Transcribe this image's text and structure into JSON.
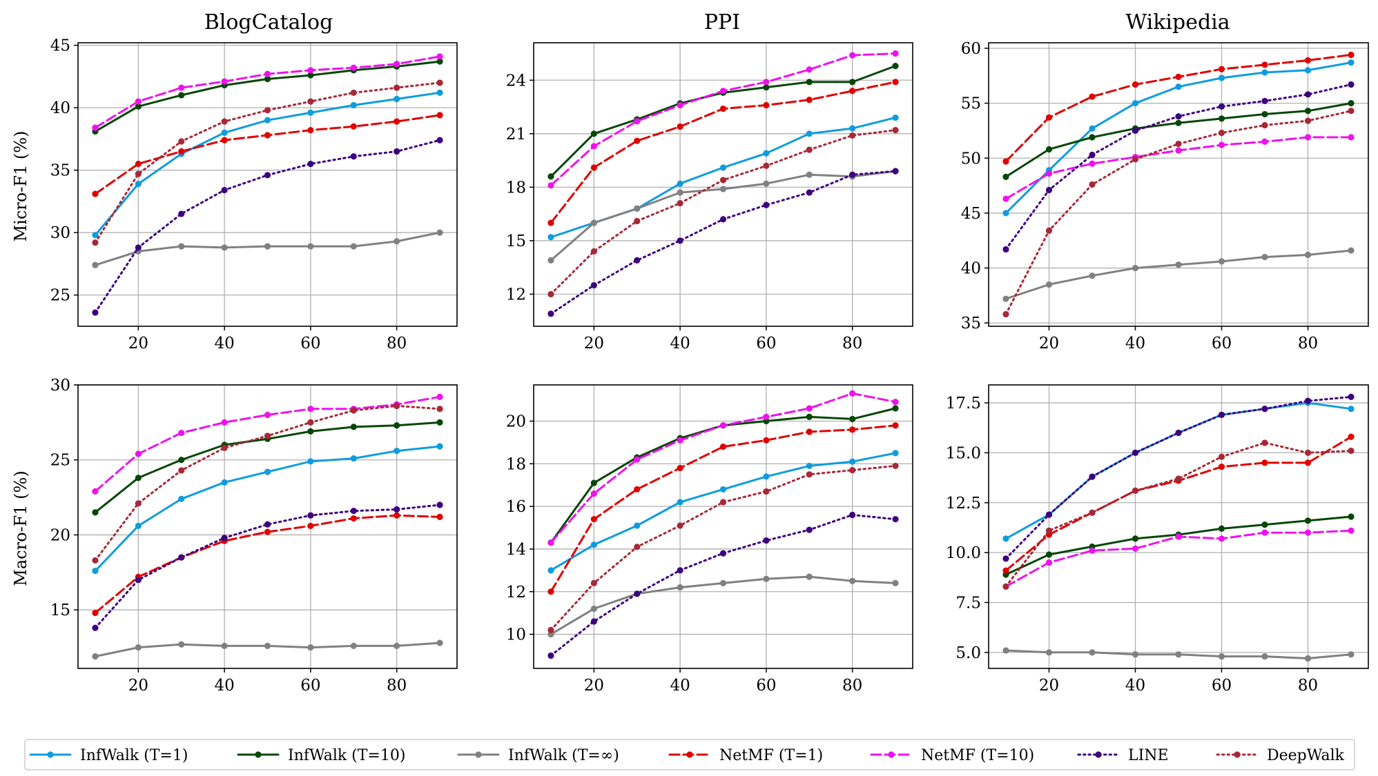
{
  "figure": {
    "row_labels": [
      "Micro-F1 (%)",
      "Macro-F1 (%)"
    ],
    "column_titles": [
      "BlogCatalog",
      "PPI",
      "Wikipedia"
    ]
  },
  "legend": {
    "placement": "bottom-center",
    "entries": [
      {
        "name": "InfWalk (T=1)",
        "color": "#0e9ce0",
        "dash": "solid"
      },
      {
        "name": "InfWalk (T=10)",
        "color": "#054705",
        "dash": "solid"
      },
      {
        "name": "InfWalk (T=∞)",
        "color": "#808080",
        "dash": "solid"
      },
      {
        "name": "NetMF (T=1)",
        "color": "#e00000",
        "dash": "dashed"
      },
      {
        "name": "NetMF (T=10)",
        "color": "#ee11ee",
        "dash": "dashed"
      },
      {
        "name": "LINE",
        "color": "#3d0080",
        "dash": "dotted"
      },
      {
        "name": "DeepWalk",
        "color": "#a82838",
        "dash": "dotted"
      }
    ]
  },
  "chart_data": [
    {
      "type": "line",
      "title": "BlogCatalog",
      "xlabel": "",
      "ylabel": "Micro-F1 (%)",
      "grid": true,
      "xlim": [
        6,
        94
      ],
      "ylim": [
        22.5,
        45.2
      ],
      "xticks": [
        "20",
        "40",
        "60",
        "80"
      ],
      "yticks": [
        "25",
        "30",
        "35",
        "40",
        "45"
      ],
      "x": [
        10,
        20,
        30,
        40,
        50,
        60,
        70,
        80,
        90
      ],
      "series": [
        {
          "name": "InfWalk (T=1)",
          "values": [
            29.8,
            33.9,
            36.3,
            38.0,
            39.0,
            39.6,
            40.2,
            40.7,
            41.2
          ]
        },
        {
          "name": "InfWalk (T=10)",
          "values": [
            38.1,
            40.1,
            41.0,
            41.8,
            42.3,
            42.6,
            43.0,
            43.3,
            43.7
          ]
        },
        {
          "name": "InfWalk (T=∞)",
          "values": [
            27.4,
            28.5,
            28.9,
            28.8,
            28.9,
            28.9,
            28.9,
            29.3,
            30.0
          ]
        },
        {
          "name": "NetMF (T=1)",
          "values": [
            33.1,
            35.5,
            36.5,
            37.4,
            37.8,
            38.2,
            38.5,
            38.9,
            39.4
          ]
        },
        {
          "name": "NetMF (T=10)",
          "values": [
            38.4,
            40.5,
            41.6,
            42.1,
            42.7,
            43.0,
            43.2,
            43.5,
            44.1
          ]
        },
        {
          "name": "LINE",
          "values": [
            23.6,
            28.8,
            31.5,
            33.4,
            34.6,
            35.5,
            36.1,
            36.5,
            37.4
          ]
        },
        {
          "name": "DeepWalk",
          "values": [
            29.2,
            34.7,
            37.3,
            38.9,
            39.8,
            40.5,
            41.2,
            41.6,
            42.0
          ]
        }
      ]
    },
    {
      "type": "line",
      "title": "PPI",
      "xlabel": "",
      "ylabel": "",
      "grid": true,
      "xlim": [
        6,
        94
      ],
      "ylim": [
        10.2,
        26.1
      ],
      "xticks": [
        "20",
        "40",
        "60",
        "80"
      ],
      "yticks": [
        "12",
        "15",
        "18",
        "21",
        "24"
      ],
      "x": [
        10,
        20,
        30,
        40,
        50,
        60,
        70,
        80,
        90
      ],
      "series": [
        {
          "name": "InfWalk (T=1)",
          "values": [
            15.2,
            16.0,
            16.8,
            18.2,
            19.1,
            19.9,
            21.0,
            21.3,
            21.9
          ]
        },
        {
          "name": "InfWalk (T=10)",
          "values": [
            18.6,
            21.0,
            21.8,
            22.7,
            23.3,
            23.6,
            23.9,
            23.9,
            24.8
          ]
        },
        {
          "name": "InfWalk (T=∞)",
          "values": [
            13.9,
            16.0,
            16.8,
            17.7,
            17.9,
            18.2,
            18.7,
            18.6,
            18.9
          ]
        },
        {
          "name": "NetMF (T=1)",
          "values": [
            16.0,
            19.1,
            20.6,
            21.4,
            22.4,
            22.6,
            22.9,
            23.4,
            23.9
          ]
        },
        {
          "name": "NetMF (T=10)",
          "values": [
            18.1,
            20.3,
            21.7,
            22.6,
            23.4,
            23.9,
            24.6,
            25.4,
            25.5
          ]
        },
        {
          "name": "LINE",
          "values": [
            10.9,
            12.5,
            13.9,
            15.0,
            16.2,
            17.0,
            17.7,
            18.7,
            18.9
          ]
        },
        {
          "name": "DeepWalk",
          "values": [
            12.0,
            14.4,
            16.1,
            17.1,
            18.4,
            19.2,
            20.1,
            20.9,
            21.2
          ]
        }
      ]
    },
    {
      "type": "line",
      "title": "Wikipedia",
      "xlabel": "",
      "ylabel": "",
      "grid": true,
      "xlim": [
        6,
        94
      ],
      "ylim": [
        34.7,
        60.5
      ],
      "xticks": [
        "20",
        "40",
        "60",
        "80"
      ],
      "yticks": [
        "35",
        "40",
        "45",
        "50",
        "55",
        "60"
      ],
      "x": [
        10,
        20,
        30,
        40,
        50,
        60,
        70,
        80,
        90
      ],
      "series": [
        {
          "name": "InfWalk (T=1)",
          "values": [
            45.0,
            48.9,
            52.7,
            55.0,
            56.5,
            57.3,
            57.8,
            58.0,
            58.7
          ]
        },
        {
          "name": "InfWalk (T=10)",
          "values": [
            48.3,
            50.8,
            51.9,
            52.7,
            53.2,
            53.6,
            54.0,
            54.3,
            55.0
          ]
        },
        {
          "name": "InfWalk (T=∞)",
          "values": [
            37.2,
            38.5,
            39.3,
            40.0,
            40.3,
            40.6,
            41.0,
            41.2,
            41.6
          ]
        },
        {
          "name": "NetMF (T=1)",
          "values": [
            49.7,
            53.7,
            55.6,
            56.7,
            57.4,
            58.1,
            58.5,
            58.9,
            59.4
          ]
        },
        {
          "name": "NetMF (T=10)",
          "values": [
            46.3,
            48.6,
            49.5,
            50.1,
            50.7,
            51.2,
            51.5,
            51.9,
            51.9
          ]
        },
        {
          "name": "LINE",
          "values": [
            41.7,
            47.1,
            50.3,
            52.5,
            53.8,
            54.7,
            55.2,
            55.8,
            56.7
          ]
        },
        {
          "name": "DeepWalk",
          "values": [
            35.8,
            43.4,
            47.6,
            49.9,
            51.3,
            52.3,
            53.0,
            53.4,
            54.3
          ]
        }
      ]
    },
    {
      "type": "line",
      "title": "",
      "xlabel": "",
      "ylabel": "Macro-F1 (%)",
      "grid": true,
      "xlim": [
        6,
        94
      ],
      "ylim": [
        11.1,
        30.0
      ],
      "xticks": [
        "20",
        "40",
        "60",
        "80"
      ],
      "yticks": [
        "15",
        "20",
        "25",
        "30"
      ],
      "x": [
        10,
        20,
        30,
        40,
        50,
        60,
        70,
        80,
        90
      ],
      "series": [
        {
          "name": "InfWalk (T=1)",
          "values": [
            17.6,
            20.6,
            22.4,
            23.5,
            24.2,
            24.9,
            25.1,
            25.6,
            25.9
          ]
        },
        {
          "name": "InfWalk (T=10)",
          "values": [
            21.5,
            23.8,
            25.0,
            26.0,
            26.4,
            26.9,
            27.2,
            27.3,
            27.5
          ]
        },
        {
          "name": "InfWalk (T=∞)",
          "values": [
            11.9,
            12.5,
            12.7,
            12.6,
            12.6,
            12.5,
            12.6,
            12.6,
            12.8
          ]
        },
        {
          "name": "NetMF (T=1)",
          "values": [
            14.8,
            17.2,
            18.5,
            19.6,
            20.2,
            20.6,
            21.1,
            21.3,
            21.2
          ]
        },
        {
          "name": "NetMF (T=10)",
          "values": [
            22.9,
            25.4,
            26.8,
            27.5,
            28.0,
            28.4,
            28.4,
            28.7,
            29.2
          ]
        },
        {
          "name": "LINE",
          "values": [
            13.8,
            17.0,
            18.5,
            19.8,
            20.7,
            21.3,
            21.6,
            21.7,
            22.0
          ]
        },
        {
          "name": "DeepWalk",
          "values": [
            18.3,
            22.1,
            24.3,
            25.8,
            26.6,
            27.5,
            28.3,
            28.6,
            28.4
          ]
        }
      ]
    },
    {
      "type": "line",
      "title": "",
      "xlabel": "",
      "ylabel": "",
      "grid": true,
      "xlim": [
        6,
        94
      ],
      "ylim": [
        8.4,
        21.7
      ],
      "xticks": [
        "20",
        "40",
        "60",
        "80"
      ],
      "yticks": [
        "10",
        "12",
        "14",
        "16",
        "18",
        "20"
      ],
      "x": [
        10,
        20,
        30,
        40,
        50,
        60,
        70,
        80,
        90
      ],
      "series": [
        {
          "name": "InfWalk (T=1)",
          "values": [
            13.0,
            14.2,
            15.1,
            16.2,
            16.8,
            17.4,
            17.9,
            18.1,
            18.5
          ]
        },
        {
          "name": "InfWalk (T=10)",
          "values": [
            14.3,
            17.1,
            18.3,
            19.2,
            19.8,
            20.0,
            20.2,
            20.1,
            20.6
          ]
        },
        {
          "name": "InfWalk (T=∞)",
          "values": [
            10.0,
            11.2,
            11.9,
            12.2,
            12.4,
            12.6,
            12.7,
            12.5,
            12.4
          ]
        },
        {
          "name": "NetMF (T=1)",
          "values": [
            12.0,
            15.4,
            16.8,
            17.8,
            18.8,
            19.1,
            19.5,
            19.6,
            19.8
          ]
        },
        {
          "name": "NetMF (T=10)",
          "values": [
            14.3,
            16.6,
            18.2,
            19.1,
            19.8,
            20.2,
            20.6,
            21.3,
            20.9
          ]
        },
        {
          "name": "LINE",
          "values": [
            9.0,
            10.6,
            11.9,
            13.0,
            13.8,
            14.4,
            14.9,
            15.6,
            15.4
          ]
        },
        {
          "name": "DeepWalk",
          "values": [
            10.2,
            12.4,
            14.1,
            15.1,
            16.2,
            16.7,
            17.5,
            17.7,
            17.9
          ]
        }
      ]
    },
    {
      "type": "line",
      "title": "",
      "xlabel": "",
      "ylabel": "",
      "grid": true,
      "xlim": [
        6,
        94
      ],
      "ylim": [
        4.2,
        18.4
      ],
      "xticks": [
        "20",
        "40",
        "60",
        "80"
      ],
      "yticks": [
        "5.0",
        "7.5",
        "10.0",
        "12.5",
        "15.0",
        "17.5"
      ],
      "x": [
        10,
        20,
        30,
        40,
        50,
        60,
        70,
        80,
        90
      ],
      "series": [
        {
          "name": "InfWalk (T=1)",
          "values": [
            10.7,
            11.9,
            13.8,
            15.0,
            16.0,
            16.9,
            17.2,
            17.5,
            17.2
          ]
        },
        {
          "name": "InfWalk (T=10)",
          "values": [
            8.9,
            9.9,
            10.3,
            10.7,
            10.9,
            11.2,
            11.4,
            11.6,
            11.8
          ]
        },
        {
          "name": "InfWalk (T=∞)",
          "values": [
            5.1,
            5.0,
            5.0,
            4.9,
            4.9,
            4.8,
            4.8,
            4.7,
            4.9
          ]
        },
        {
          "name": "NetMF (T=1)",
          "values": [
            9.1,
            10.9,
            12.0,
            13.1,
            13.6,
            14.3,
            14.5,
            14.5,
            15.8
          ]
        },
        {
          "name": "NetMF (T=10)",
          "values": [
            8.3,
            9.5,
            10.1,
            10.2,
            10.8,
            10.7,
            11.0,
            11.0,
            11.1
          ]
        },
        {
          "name": "LINE",
          "values": [
            9.7,
            11.9,
            13.8,
            15.0,
            16.0,
            16.9,
            17.2,
            17.6,
            17.8
          ]
        },
        {
          "name": "DeepWalk",
          "values": [
            8.3,
            11.1,
            12.0,
            13.1,
            13.7,
            14.8,
            15.5,
            15.0,
            15.1
          ]
        }
      ]
    }
  ]
}
